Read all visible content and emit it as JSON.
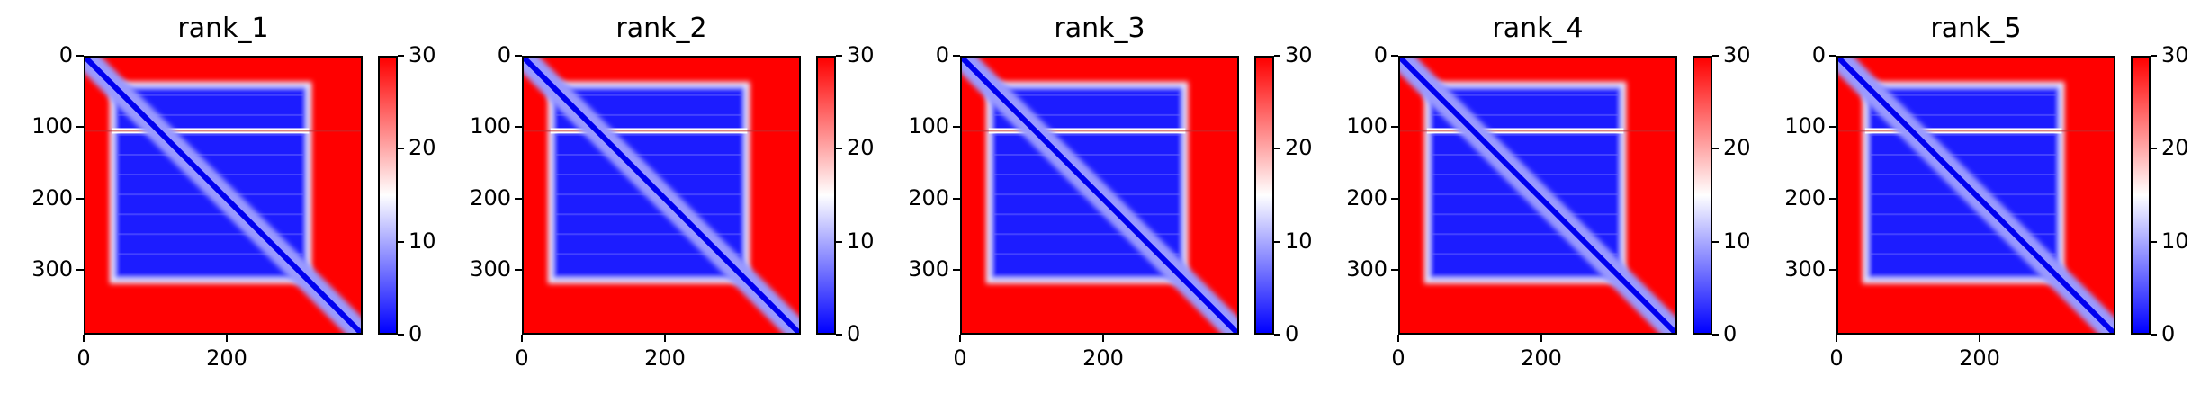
{
  "chart_data": {
    "type": "heatmap",
    "colormap": [
      "#0000ff",
      "#ffffff",
      "#ff0000"
    ],
    "panels": [
      {
        "title": "rank_1"
      },
      {
        "title": "rank_2"
      },
      {
        "title": "rank_3"
      },
      {
        "title": "rank_4"
      },
      {
        "title": "rank_5"
      }
    ],
    "matrix_size": 390,
    "block": {
      "start": 40,
      "end": 315
    },
    "white_stripe_row": 105,
    "xlim": [
      0,
      390
    ],
    "ylim": [
      390,
      0
    ],
    "xticks": [
      "0",
      "200"
    ],
    "xtick_values": [
      0,
      200
    ],
    "yticks": [
      "0",
      "100",
      "200",
      "300"
    ],
    "ytick_values": [
      0,
      100,
      200,
      300
    ],
    "colorbar": {
      "range": [
        0,
        30
      ],
      "ticks": [
        "0",
        "10",
        "20",
        "30"
      ],
      "tick_values": [
        0,
        10,
        20,
        30
      ]
    },
    "xlabel": "",
    "ylabel": ""
  }
}
